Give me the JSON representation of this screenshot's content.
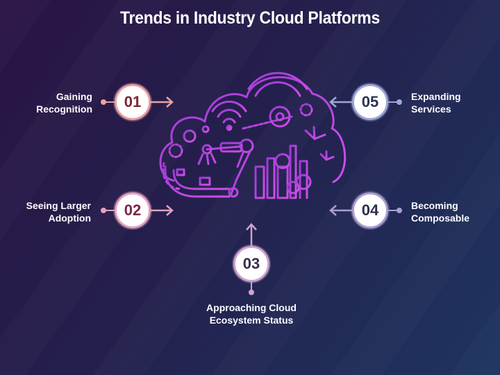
{
  "title": "Trends in Industry Cloud Platforms",
  "colors": {
    "background_start": "#2a1444",
    "background_end": "#1e3460",
    "cloud_outline": "#c04ce6",
    "trend_01": "#e9a3a3",
    "trend_02": "#e2a2bf",
    "trend_03": "#cfa2cf",
    "trend_04": "#a99fcf",
    "trend_05": "#9ea8d8"
  },
  "central_graphic": {
    "icon": "industry-cloud-icon",
    "elements": [
      "cloud-icon",
      "wifi-icon",
      "gear-icon",
      "robot-arm-icon",
      "conveyor-belt-icon",
      "factory-tanks-icon",
      "wind-turbine-icon"
    ]
  },
  "trends": [
    {
      "number": "01",
      "line1": "Gaining",
      "line2": "Recognition"
    },
    {
      "number": "02",
      "line1": "Seeing Larger",
      "line2": "Adoption"
    },
    {
      "number": "03",
      "line1": "Approaching Cloud",
      "line2": "Ecosystem Status"
    },
    {
      "number": "04",
      "line1": "Becoming",
      "line2": "Composable"
    },
    {
      "number": "05",
      "line1": "Expanding",
      "line2": "Services"
    }
  ]
}
